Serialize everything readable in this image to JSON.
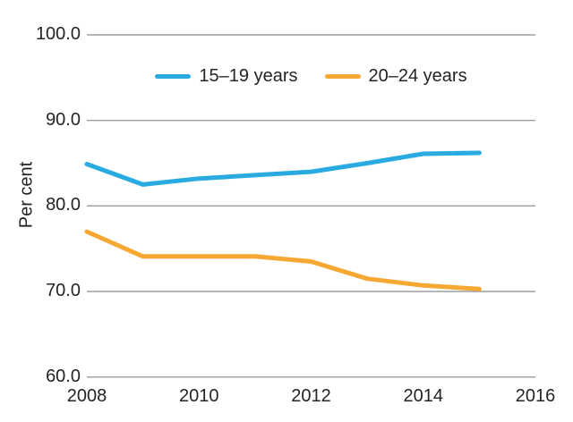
{
  "chart": {
    "ylabel": "Per cent",
    "legend": [
      {
        "label": "15–19 years",
        "color": "#29ABE2"
      },
      {
        "label": "20–24 years",
        "color": "#F6A832"
      }
    ],
    "grid_color": "#9d9d9d",
    "text_color": "#242424"
  },
  "chart_data": {
    "type": "line",
    "title": "",
    "xlabel": "",
    "ylabel": "Per cent",
    "x": [
      2008,
      2009,
      2010,
      2011,
      2012,
      2013,
      2014,
      2015
    ],
    "series": [
      {
        "name": "15–19 years",
        "color": "#29ABE2",
        "values": [
          84.9,
          82.5,
          83.2,
          83.6,
          84.0,
          85.0,
          86.1,
          86.2
        ]
      },
      {
        "name": "20–24 years",
        "color": "#F6A832",
        "values": [
          77.0,
          74.1,
          74.1,
          74.1,
          73.5,
          71.5,
          70.7,
          70.3
        ]
      }
    ],
    "xlim": [
      2008,
      2016
    ],
    "ylim": [
      60,
      100
    ],
    "xticks": [
      2008,
      2010,
      2012,
      2014,
      2016
    ],
    "xtick_labels": [
      "2008",
      "2010",
      "2012",
      "2014",
      "2016"
    ],
    "yticks": [
      60,
      70,
      80,
      90,
      100
    ],
    "ytick_labels": [
      "60.0",
      "70.0",
      "80.0",
      "90.0",
      "100.0"
    ],
    "grid": true,
    "legend_position": "top-center"
  }
}
